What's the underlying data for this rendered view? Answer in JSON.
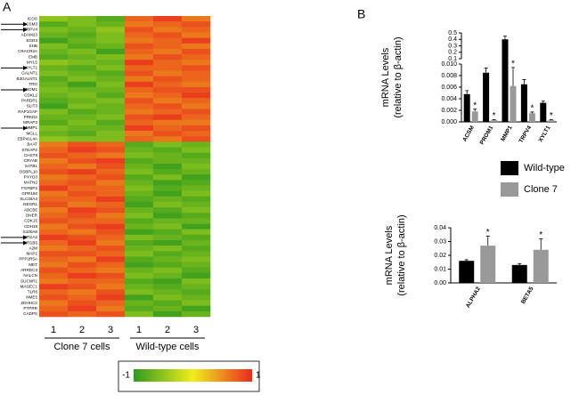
{
  "panel_labels": [
    "A",
    "B"
  ],
  "chart_data": [
    {
      "type": "heatmap",
      "rows": [
        "ICOS",
        "ACSM3",
        "TRPV4",
        "ADAM23",
        "EGR3",
        "SHB",
        "CRACR2A",
        "EMB",
        "MYL5",
        "XYLT1",
        "GALNT1",
        "B3GALNT1",
        "TRO",
        "PROM1",
        "CDKL2",
        "PARDP1",
        "SLIT3",
        "RAP1GAP",
        "PRKD2",
        "MRAP2",
        "MMP1",
        "MGLL",
        "EBP41L4A",
        "BAAT",
        "STEAP2",
        "CHST8",
        "CRYAB",
        "SATB1",
        "OSBPL10",
        "PXYD3",
        "MATN2",
        "FGFBP2",
        "GPR160",
        "SLC26A4",
        "NEGR1",
        "ABCB5",
        "DNER",
        "CDK15",
        "CDH19",
        "S100A8",
        "ITGA2",
        "ITGB5",
        "A2M",
        "MAP2",
        "PPP2R5A",
        "MET",
        "ARRDC3",
        "NALCN",
        "SUCNR1",
        "MAGEC1",
        "TLR6",
        "NME5",
        "ZDHHC2",
        "PTPRR",
        "CADPS"
      ],
      "columns": [
        "1",
        "2",
        "3",
        "1",
        "2",
        "3"
      ],
      "groups": [
        "Clone 7 cells",
        "Wild-type cells"
      ],
      "values": [
        [
          -0.5,
          -0.6,
          -0.8,
          0.7,
          0.9,
          0.6
        ],
        [
          -0.8,
          -0.6,
          -0.7,
          0.6,
          0.7,
          0.8
        ],
        [
          -0.6,
          -0.7,
          -0.5,
          0.8,
          0.6,
          0.7
        ],
        [
          -0.7,
          -0.8,
          -0.6,
          0.7,
          0.8,
          0.6
        ],
        [
          -0.9,
          -0.7,
          -0.6,
          0.6,
          0.7,
          0.9
        ],
        [
          -0.6,
          -0.8,
          -0.7,
          0.8,
          0.7,
          0.6
        ],
        [
          -0.7,
          -0.6,
          -0.9,
          0.7,
          0.6,
          0.8
        ],
        [
          -0.8,
          -0.7,
          -0.6,
          0.6,
          0.8,
          0.7
        ],
        [
          -0.5,
          -0.6,
          -0.7,
          0.9,
          0.7,
          0.6
        ],
        [
          -0.7,
          -0.8,
          -0.6,
          0.7,
          0.7,
          0.8
        ],
        [
          -0.6,
          -0.7,
          -0.8,
          0.8,
          0.6,
          0.7
        ],
        [
          -0.8,
          -0.6,
          -0.7,
          0.6,
          0.8,
          0.7
        ],
        [
          -0.7,
          -0.9,
          -0.6,
          0.9,
          0.7,
          0.6
        ],
        [
          -0.6,
          -0.7,
          -0.7,
          0.7,
          0.8,
          0.8
        ],
        [
          -0.7,
          -0.6,
          -0.8,
          0.6,
          0.7,
          0.9
        ],
        [
          -0.8,
          -0.7,
          -0.6,
          0.8,
          0.6,
          0.7
        ],
        [
          -0.9,
          -0.6,
          -0.7,
          0.7,
          0.8,
          0.6
        ],
        [
          -0.6,
          -0.8,
          -0.7,
          0.6,
          0.7,
          0.8
        ],
        [
          -0.7,
          -0.7,
          -0.6,
          0.8,
          0.9,
          0.7
        ],
        [
          -0.8,
          -0.6,
          -0.8,
          0.7,
          0.6,
          0.6
        ],
        [
          -0.6,
          -0.7,
          -0.7,
          0.9,
          0.7,
          0.8
        ],
        [
          -0.7,
          -0.8,
          -0.6,
          0.6,
          0.8,
          0.7
        ],
        [
          -0.5,
          -0.6,
          -0.6,
          0.7,
          0.6,
          0.8
        ],
        [
          0.6,
          0.8,
          0.7,
          -0.8,
          -0.6,
          -0.7
        ],
        [
          0.7,
          0.9,
          0.8,
          -0.7,
          -0.8,
          -0.6
        ],
        [
          0.8,
          0.7,
          0.6,
          -0.6,
          -0.7,
          -0.8
        ],
        [
          0.6,
          0.8,
          0.9,
          -0.8,
          -0.7,
          -0.7
        ],
        [
          0.7,
          0.6,
          0.8,
          -0.7,
          -0.9,
          -0.6
        ],
        [
          0.8,
          0.9,
          0.7,
          -0.6,
          -0.8,
          -0.7
        ],
        [
          0.6,
          0.7,
          0.8,
          -0.8,
          -0.6,
          -0.9
        ],
        [
          0.7,
          0.8,
          0.6,
          -0.7,
          -0.9,
          -0.8
        ],
        [
          0.9,
          0.7,
          0.7,
          -0.6,
          -0.8,
          -0.7
        ],
        [
          0.6,
          0.8,
          0.7,
          -0.7,
          -0.9,
          -0.6
        ],
        [
          0.7,
          0.7,
          0.9,
          -0.8,
          -0.7,
          -0.8
        ],
        [
          0.8,
          0.6,
          0.7,
          -0.9,
          -0.6,
          -0.7
        ],
        [
          0.6,
          0.9,
          0.8,
          -0.7,
          -0.8,
          -0.6
        ],
        [
          0.7,
          0.8,
          0.6,
          -0.6,
          -0.9,
          -0.8
        ],
        [
          0.8,
          0.7,
          0.7,
          -0.8,
          -0.7,
          -0.7
        ],
        [
          0.6,
          0.8,
          0.9,
          -0.7,
          -0.6,
          -0.9
        ],
        [
          0.7,
          0.6,
          0.8,
          -0.9,
          -0.8,
          -0.6
        ],
        [
          0.9,
          0.8,
          0.7,
          -0.6,
          -0.7,
          -0.8
        ],
        [
          0.7,
          0.9,
          0.6,
          -0.8,
          -0.9,
          -0.7
        ],
        [
          0.6,
          0.7,
          0.8,
          -0.7,
          -0.6,
          -0.8
        ],
        [
          0.8,
          0.8,
          0.7,
          -0.6,
          -0.8,
          -0.7
        ],
        [
          0.7,
          0.6,
          0.9,
          -0.8,
          -0.7,
          -0.6
        ],
        [
          0.6,
          0.8,
          0.7,
          -0.9,
          -0.8,
          -0.7
        ],
        [
          0.8,
          0.7,
          0.6,
          -0.7,
          -0.6,
          -0.8
        ],
        [
          0.7,
          0.9,
          0.8,
          -0.6,
          -0.7,
          -0.9
        ],
        [
          0.6,
          0.7,
          0.7,
          -0.8,
          -0.9,
          -0.6
        ],
        [
          0.9,
          0.8,
          0.6,
          -0.7,
          -0.8,
          -0.7
        ],
        [
          0.7,
          0.6,
          0.8,
          -0.6,
          -0.7,
          -0.8
        ],
        [
          0.8,
          0.7,
          0.9,
          -0.9,
          -0.6,
          -0.7
        ],
        [
          0.6,
          0.8,
          0.7,
          -0.7,
          -0.8,
          -0.6
        ],
        [
          0.7,
          0.9,
          0.6,
          -0.8,
          -0.7,
          -0.9
        ],
        [
          0.8,
          0.7,
          0.8,
          -0.6,
          -0.9,
          -0.7
        ]
      ],
      "colorbar": {
        "lim": [
          -1,
          1
        ],
        "ticks": [
          -1,
          1
        ],
        "colors": [
          "#2f9a1e",
          "#f0ee1a",
          "#ea2a1e"
        ]
      }
    },
    {
      "type": "bar",
      "y_label": [
        "mRNA Levels",
        "(relative to β-actin)"
      ],
      "categories": [
        "ACSM",
        "PROM1",
        "MMP1",
        "TRPV4",
        "XYLT1"
      ],
      "series": [
        {
          "name": "Wild-type",
          "color": "#000000",
          "values": [
            0.0048,
            0.0085,
            0.4,
            0.0065,
            0.0033
          ],
          "errors": [
            0.0006,
            0.0008,
            0.05,
            0.0008,
            0.0003
          ]
        },
        {
          "name": "Clone 7",
          "color": "#999999",
          "values": [
            0.0018,
            0.0003,
            0.0062,
            0.0015,
            0.0003
          ],
          "errors": [
            0.0004,
            0.0001,
            0.0032,
            0.0002,
            0.0001
          ],
          "significance": [
            "*",
            "*",
            "*",
            "*",
            "*"
          ]
        }
      ],
      "ylim": [
        0,
        0.5
      ],
      "ybreak": [
        0.01,
        0.1
      ],
      "yticks": [
        {
          "value": 0,
          "label": "0.000"
        },
        0.002,
        0.004,
        0.006,
        0.008,
        {
          "value": 0.01,
          "label": "0.010"
        },
        0.1,
        0.2,
        0.3,
        0.4,
        0.5
      ]
    },
    {
      "type": "bar",
      "y_label": [
        "mRNA Levels",
        "(relative to β-actin)"
      ],
      "categories": [
        "ALPHA2",
        "BETA5"
      ],
      "series": [
        {
          "color": "#000000",
          "values": [
            0.016,
            0.013
          ],
          "errors": [
            0.0008,
            0.001
          ]
        },
        {
          "color": "#999999",
          "values": [
            0.027,
            0.024
          ],
          "errors": [
            0.007,
            0.008
          ],
          "significance": [
            "*",
            "*"
          ]
        }
      ],
      "ylim": [
        0,
        0.04
      ],
      "yticks": [
        {
          "value": 0,
          "label": "0.00"
        },
        0.01,
        0.02,
        0.03,
        0.04
      ]
    }
  ]
}
